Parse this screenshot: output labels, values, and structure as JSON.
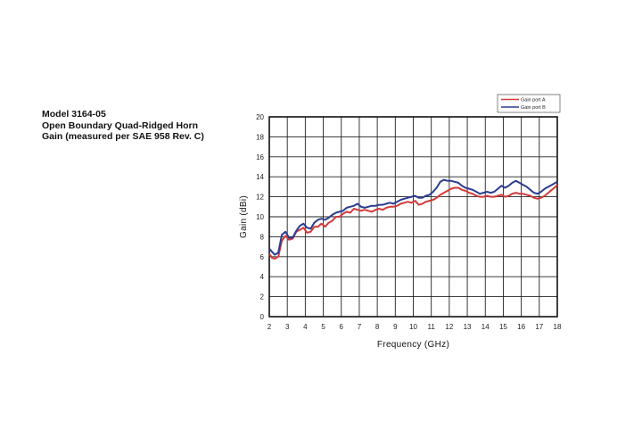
{
  "header": {
    "model": "Model 3164-05",
    "line2": "Open Boundary Quad-Ridged Horn",
    "line3": "Gain (measured per SAE 958 Rev. C)"
  },
  "chart_data": {
    "type": "line",
    "xlabel": "Frequency (GHz)",
    "ylabel": "Gain (dBi)",
    "xlim": [
      2,
      18
    ],
    "ylim": [
      0,
      20
    ],
    "xticks": [
      "2",
      "3",
      "4",
      "5",
      "6",
      "7",
      "8",
      "9",
      "10",
      "11",
      "12",
      "13",
      "14",
      "15",
      "16",
      "17",
      "18"
    ],
    "yticks": [
      "0",
      "2",
      "4",
      "6",
      "8",
      "10",
      "12",
      "14",
      "16",
      "18",
      "20"
    ],
    "grid": true,
    "legend_position": "top-right",
    "series": [
      {
        "name": "Gain port A",
        "color": "#d23a3a",
        "x": [
          2,
          2.15,
          2.3,
          2.5,
          2.7,
          2.9,
          3.1,
          3.3,
          3.5,
          3.7,
          3.9,
          4.1,
          4.3,
          4.5,
          4.7,
          4.9,
          5.1,
          5.3,
          5.5,
          5.7,
          5.9,
          6.1,
          6.3,
          6.5,
          6.7,
          6.9,
          7.1,
          7.3,
          7.5,
          7.7,
          7.9,
          8.1,
          8.3,
          8.5,
          8.7,
          8.9,
          9.1,
          9.3,
          9.5,
          9.7,
          9.9,
          10.1,
          10.3,
          10.5,
          10.7,
          10.9,
          11.1,
          11.3,
          11.5,
          11.7,
          11.9,
          12.1,
          12.3,
          12.5,
          12.7,
          12.9,
          13.1,
          13.3,
          13.5,
          13.7,
          13.9,
          14.1,
          14.3,
          14.5,
          14.7,
          14.9,
          15.1,
          15.3,
          15.5,
          15.7,
          15.9,
          16.1,
          16.3,
          16.5,
          16.7,
          16.9,
          17.1,
          17.3,
          17.5,
          17.7,
          17.9,
          18
        ],
        "y": [
          6.3,
          5.9,
          5.8,
          6.0,
          7.6,
          8.1,
          7.7,
          7.8,
          8.5,
          8.7,
          8.9,
          8.4,
          8.5,
          9.0,
          9.0,
          9.3,
          9.0,
          9.4,
          9.6,
          10.0,
          10.0,
          10.3,
          10.5,
          10.4,
          10.8,
          10.7,
          10.6,
          10.7,
          10.6,
          10.5,
          10.7,
          10.8,
          10.7,
          10.9,
          11.0,
          11.0,
          11.1,
          11.3,
          11.4,
          11.5,
          11.4,
          11.6,
          11.2,
          11.3,
          11.5,
          11.6,
          11.7,
          11.9,
          12.2,
          12.4,
          12.6,
          12.8,
          12.9,
          12.9,
          12.7,
          12.6,
          12.4,
          12.3,
          12.1,
          12.0,
          12.0,
          12.1,
          12.0,
          12.0,
          12.1,
          12.2,
          12.0,
          12.1,
          12.3,
          12.4,
          12.3,
          12.3,
          12.2,
          12.1,
          11.9,
          11.8,
          11.9,
          12.1,
          12.4,
          12.7,
          13.0,
          13.2
        ]
      },
      {
        "name": "Gain port B",
        "color": "#2a3d8f",
        "x": [
          2,
          2.15,
          2.3,
          2.5,
          2.7,
          2.9,
          3.1,
          3.3,
          3.5,
          3.7,
          3.9,
          4.1,
          4.3,
          4.5,
          4.7,
          4.9,
          5.1,
          5.3,
          5.5,
          5.7,
          5.9,
          6.1,
          6.3,
          6.5,
          6.7,
          6.9,
          7.1,
          7.3,
          7.5,
          7.7,
          7.9,
          8.1,
          8.3,
          8.5,
          8.7,
          8.9,
          9.1,
          9.3,
          9.5,
          9.7,
          9.9,
          10.1,
          10.3,
          10.5,
          10.7,
          10.9,
          11.1,
          11.3,
          11.5,
          11.7,
          11.9,
          12.1,
          12.3,
          12.5,
          12.7,
          12.9,
          13.1,
          13.3,
          13.5,
          13.7,
          13.9,
          14.1,
          14.3,
          14.5,
          14.7,
          14.9,
          15.1,
          15.3,
          15.5,
          15.7,
          15.9,
          16.1,
          16.3,
          16.5,
          16.7,
          16.9,
          17.1,
          17.3,
          17.5,
          17.7,
          17.9,
          18
        ],
        "y": [
          6.8,
          6.5,
          6.2,
          6.4,
          8.2,
          8.5,
          7.9,
          7.9,
          8.6,
          9.1,
          9.3,
          8.9,
          8.8,
          9.4,
          9.7,
          9.8,
          9.7,
          9.9,
          10.2,
          10.4,
          10.5,
          10.6,
          10.9,
          11.0,
          11.1,
          11.3,
          11.0,
          10.9,
          11.0,
          11.1,
          11.1,
          11.2,
          11.2,
          11.3,
          11.4,
          11.3,
          11.5,
          11.7,
          11.8,
          11.9,
          12.0,
          12.1,
          11.9,
          11.9,
          12.1,
          12.2,
          12.5,
          12.9,
          13.5,
          13.7,
          13.6,
          13.6,
          13.5,
          13.4,
          13.1,
          12.9,
          12.8,
          12.7,
          12.5,
          12.3,
          12.4,
          12.5,
          12.4,
          12.5,
          12.8,
          13.1,
          12.9,
          13.1,
          13.4,
          13.6,
          13.4,
          13.2,
          13.0,
          12.7,
          12.4,
          12.3,
          12.5,
          12.8,
          13.0,
          13.2,
          13.4,
          13.5
        ]
      }
    ]
  }
}
